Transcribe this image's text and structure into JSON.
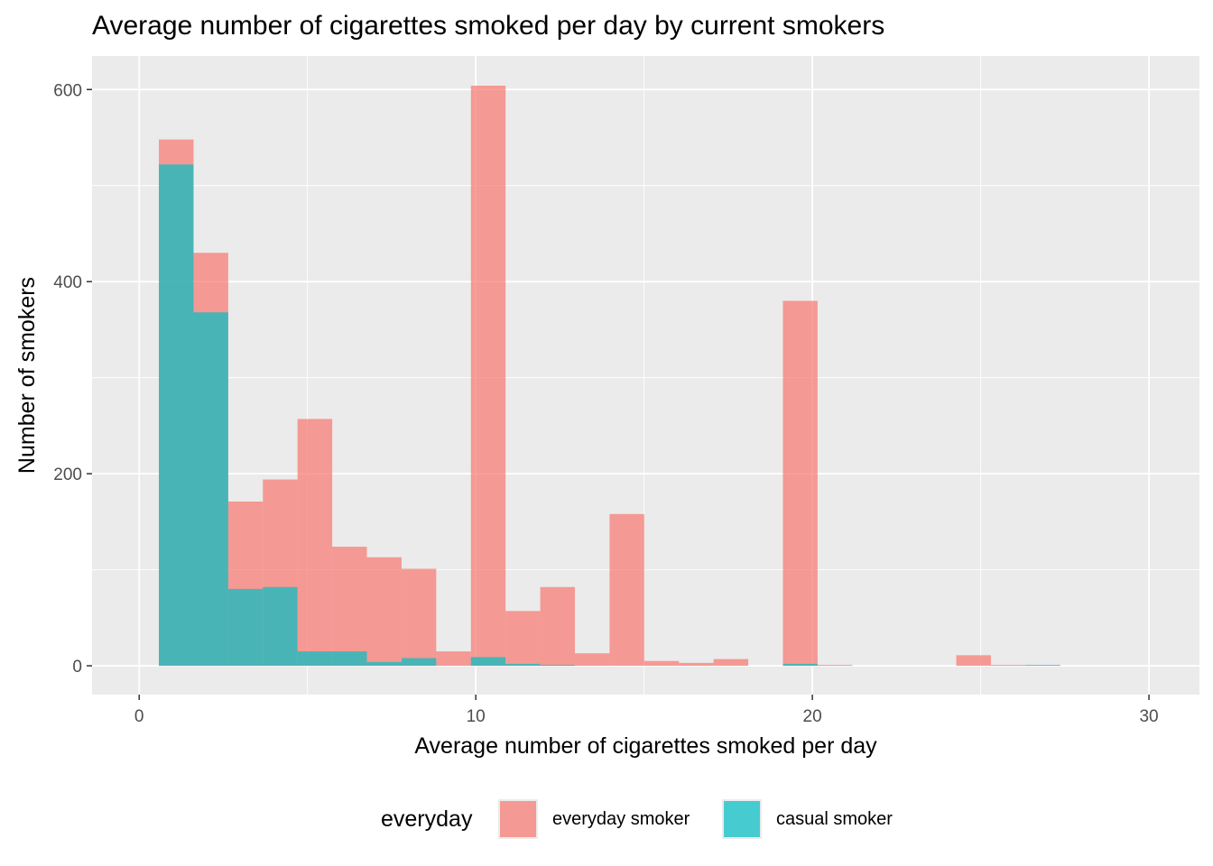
{
  "title": "Average number of cigarettes smoked per day by current smokers",
  "chart_data": {
    "type": "bar",
    "subtype": "overlapping histogram",
    "title": "Average number of cigarettes smoked per day by current smokers",
    "xlabel": "Average number of cigarettes smoked per day",
    "ylabel": "Number of smokers",
    "xlim": [
      -1.4,
      31.5
    ],
    "ylim": [
      -30,
      635
    ],
    "x_ticks": [
      0,
      10,
      20,
      30
    ],
    "x_tick_labels": [
      "0",
      "10",
      "20",
      "30"
    ],
    "y_ticks": [
      0,
      200,
      400,
      600
    ],
    "y_tick_labels": [
      "0",
      "200",
      "400",
      "600"
    ],
    "grid": true,
    "legend_position": "bottom",
    "legend_title": "everyday",
    "bin_width": 1.03,
    "bin_centers": [
      1.1,
      2.13,
      3.16,
      4.19,
      5.22,
      6.25,
      7.28,
      8.31,
      9.34,
      10.37,
      11.4,
      12.43,
      13.46,
      14.49,
      15.52,
      16.55,
      17.58,
      18.61,
      19.64,
      20.67,
      21.7,
      22.73,
      23.76,
      24.79,
      25.82,
      26.85,
      27.88,
      28.91,
      29.94
    ],
    "series": [
      {
        "name": "everyday smoker",
        "color": "#F8766D",
        "values": [
          548,
          430,
          171,
          194,
          257,
          124,
          113,
          101,
          15,
          604,
          57,
          82,
          13,
          158,
          5,
          3,
          7,
          0,
          380,
          1,
          0,
          0,
          0,
          11,
          1,
          0,
          0,
          0,
          0
        ]
      },
      {
        "name": "casual smoker",
        "color": "#00BFC4",
        "values": [
          522,
          368,
          80,
          82,
          15,
          15,
          4,
          8,
          0,
          9,
          2,
          1,
          0,
          0,
          0,
          0,
          0,
          0,
          2,
          0,
          0,
          0,
          0,
          0,
          0,
          1,
          0,
          0,
          0
        ]
      }
    ]
  }
}
